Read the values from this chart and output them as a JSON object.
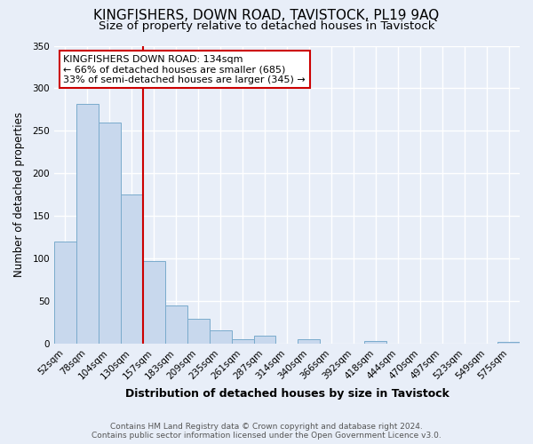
{
  "title": "KINGFISHERS, DOWN ROAD, TAVISTOCK, PL19 9AQ",
  "subtitle": "Size of property relative to detached houses in Tavistock",
  "xlabel": "Distribution of detached houses by size in Tavistock",
  "ylabel": "Number of detached properties",
  "bin_labels": [
    "52sqm",
    "78sqm",
    "104sqm",
    "130sqm",
    "157sqm",
    "183sqm",
    "209sqm",
    "235sqm",
    "261sqm",
    "287sqm",
    "314sqm",
    "340sqm",
    "366sqm",
    "392sqm",
    "418sqm",
    "444sqm",
    "470sqm",
    "497sqm",
    "523sqm",
    "549sqm",
    "575sqm"
  ],
  "bar_values": [
    120,
    282,
    260,
    175,
    97,
    45,
    29,
    16,
    5,
    9,
    0,
    5,
    0,
    0,
    3,
    0,
    0,
    0,
    0,
    0,
    2
  ],
  "bar_color": "#c8d8ed",
  "bar_edge_color": "#7aabcc",
  "vline_x_pos": 3.5,
  "vline_color": "#cc0000",
  "annotation_title": "KINGFISHERS DOWN ROAD: 134sqm",
  "annotation_line1": "← 66% of detached houses are smaller (685)",
  "annotation_line2": "33% of semi-detached houses are larger (345) →",
  "annotation_box_color": "#ffffff",
  "annotation_box_edge": "#cc0000",
  "ylim": [
    0,
    350
  ],
  "yticks": [
    0,
    50,
    100,
    150,
    200,
    250,
    300,
    350
  ],
  "footer1": "Contains HM Land Registry data © Crown copyright and database right 2024.",
  "footer2": "Contains public sector information licensed under the Open Government Licence v3.0.",
  "background_color": "#e8eef8",
  "grid_color": "#ffffff",
  "title_fontsize": 11,
  "subtitle_fontsize": 9.5,
  "xlabel_fontsize": 9,
  "ylabel_fontsize": 8.5,
  "tick_fontsize": 7.5,
  "footer_fontsize": 6.5
}
